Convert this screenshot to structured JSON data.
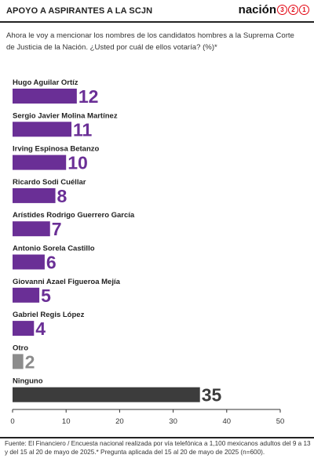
{
  "header": {
    "title": "APOYO A ASPIRANTES A LA SCJN",
    "brand": "nación",
    "brand_digits": [
      "3",
      "2",
      "1"
    ]
  },
  "question": "Ahora le voy a mencionar los nombres de los candidatos hombres a la Suprema Corte de Justicia de la Nación. ¿Usted por cuál de ellos votaría? (%)*",
  "source": "Fuente: El Financiero / Encuesta nacional realizada por vía telefónica a 1,100 mexicanos adultos del 9 a 13 y del 15 al 20 de mayo de 2025.* Pregunta aplicada del 15 al 20 de mayo de 2025 (n=600).",
  "colors": {
    "primary": "#6a2f96",
    "other": "#8c8c8c",
    "none": "#3c3c3c",
    "axis": "#333333"
  },
  "chart_data": {
    "type": "bar",
    "orientation": "horizontal",
    "title": "APOYO A ASPIRANTES A LA SCJN",
    "categories": [
      "Hugo Aguilar Ortíz",
      "Sergio Javier Molina Martínez",
      "Irving Espinosa Betanzo",
      "Ricardo Sodi Cuéllar",
      "Arístides Rodrigo Guerrero García",
      "Antonio Sorela Castillo",
      "Giovanni Azael Figueroa Mejía",
      "Gabriel Regis López",
      "Otro",
      "Ninguno"
    ],
    "values": [
      12,
      11,
      10,
      8,
      7,
      6,
      5,
      4,
      2,
      35
    ],
    "bar_colors": [
      "#6a2f96",
      "#6a2f96",
      "#6a2f96",
      "#6a2f96",
      "#6a2f96",
      "#6a2f96",
      "#6a2f96",
      "#6a2f96",
      "#8c8c8c",
      "#3c3c3c"
    ],
    "xlim": [
      0,
      50
    ],
    "xticks": [
      0,
      10,
      20,
      30,
      40,
      50
    ],
    "grid": false,
    "legend": "none",
    "xlabel": "",
    "ylabel": ""
  }
}
